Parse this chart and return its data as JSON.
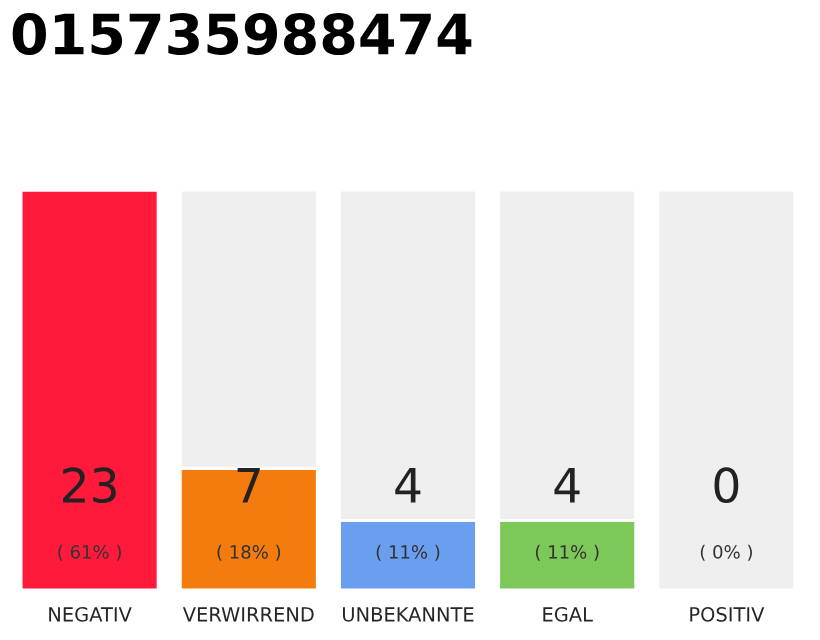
{
  "chart_data": {
    "type": "bar",
    "title": "015735988474",
    "stacked": true,
    "categories": [
      "NEGATIV",
      "VERWIRREND",
      "UNBEKANNTE",
      "EGAL",
      "POSITIV"
    ],
    "series": [
      {
        "colors": [
          "#ff1a3c",
          "#f47c0e",
          "#6a9ff0",
          "#7cc95a",
          "#efefef"
        ],
        "values": [
          23,
          7,
          4,
          4,
          0
        ],
        "data_labels": true
      },
      {
        "color": "#efefef",
        "values": [
          0,
          16,
          19,
          19,
          23
        ]
      }
    ],
    "annotations": [
      "( 61% )",
      "( 18% )",
      "( 11% )",
      "( 11% )",
      "( 0% )"
    ]
  }
}
